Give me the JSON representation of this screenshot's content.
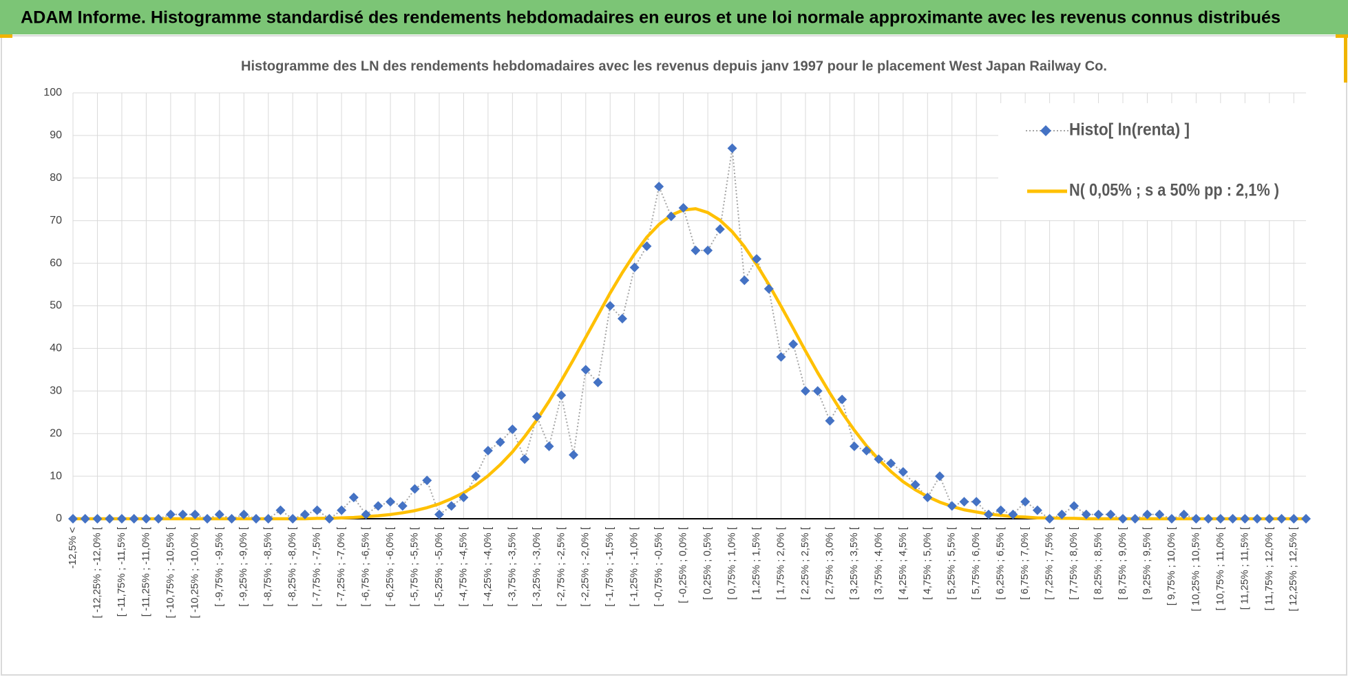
{
  "header": {
    "title": "ADAM Informe. Histogramme standardisé des rendements hebdomadaires en euros et une loi normale approximante avec les revenus connus distribués"
  },
  "chart_data": {
    "type": "line",
    "title": "Histogramme des LN des rendements hebdomadaires avec les revenus depuis janv 1997 pour le placement West Japan Railway Co.",
    "categories": [
      "-12,5% <",
      null,
      "[ -12,25% ; -12,0% [",
      null,
      "[ -11,75% ; -11,5% [",
      null,
      "[ -11,25% ; -11,0% [",
      null,
      "[ -10,75% ; -10,5% [",
      null,
      "[ -10,25% ; -10,0% [",
      null,
      "[ -9,75% ; -9,5% [",
      null,
      "[ -9,25% ; -9,0% [",
      null,
      "[ -8,75% ; -8,5% [",
      null,
      "[ -8,25% ; -8,0% [",
      null,
      "[ -7,75% ; -7,5% [",
      null,
      "[ -7,25% ; -7,0% [",
      null,
      "[ -6,75% ; -6,5% [",
      null,
      "[ -6,25% ; -6,0% [",
      null,
      "[ -5,75% ; -5,5% [",
      null,
      "[ -5,25% ; -5,0% [",
      null,
      "[ -4,75% ; -4,5% [",
      null,
      "[ -4,25% ; -4,0% [",
      null,
      "[ -3,75% ; -3,5% [",
      null,
      "[ -3,25% ; -3,0% [",
      null,
      "[ -2,75% ; -2,5% [",
      null,
      "[ -2,25% ; -2,0% [",
      null,
      "[ -1,75% ; -1,5% [",
      null,
      "[ -1,25% ; -1,0% [",
      null,
      "[ -0,75% ; -0,5% [",
      null,
      "[ -0,25% ; 0,0% [",
      null,
      "[ 0,25% ; 0,5% [",
      null,
      "[ 0,75% ; 1,0% [",
      null,
      "[ 1,25% ; 1,5% [",
      null,
      "[ 1,75% ; 2,0% [",
      null,
      "[ 2,25% ; 2,5% [",
      null,
      "[ 2,75% ; 3,0% [",
      null,
      "[ 3,25% ; 3,5% [",
      null,
      "[ 3,75% ; 4,0% [",
      null,
      "[ 4,25% ; 4,5% [",
      null,
      "[ 4,75% ; 5,0% [",
      null,
      "[ 5,25% ; 5,5% [",
      null,
      "[ 5,75% ; 6,0% [",
      null,
      "[ 6,25% ; 6,5% [",
      null,
      "[ 6,75% ; 7,0% [",
      null,
      "[ 7,25% ; 7,5% [",
      null,
      "[ 7,75% ; 8,0% [",
      null,
      "[ 8,25% ; 8,5% [",
      null,
      "[ 8,75% ; 9,0% [",
      null,
      "[ 9,25% ; 9,5% [",
      null,
      "[ 9,75% ; 10,0% [",
      null,
      "[ 10,25% ; 10,5% [",
      null,
      "[ 10,75% ; 11,0% [",
      null,
      "[ 11,25% ; 11,5% [",
      null,
      "[ 11,75% ; 12,0% [",
      null,
      "[ 12,25% ; 12,5% [",
      null
    ],
    "series": [
      {
        "name": "Histo[ ln(renta) ]",
        "color": "#4472c4",
        "line_color": "#a5a5a5",
        "marker": "diamond",
        "line_style": "dotted",
        "values": [
          0,
          0,
          0,
          0,
          0,
          0,
          0,
          0,
          1,
          1,
          1,
          0,
          1,
          0,
          1,
          0,
          0,
          2,
          0,
          1,
          2,
          0,
          2,
          5,
          1,
          3,
          4,
          3,
          7,
          9,
          1,
          3,
          5,
          10,
          16,
          18,
          21,
          14,
          24,
          17,
          29,
          15,
          35,
          32,
          50,
          47,
          59,
          64,
          78,
          71,
          73,
          63,
          63,
          68,
          87,
          56,
          61,
          54,
          38,
          41,
          30,
          30,
          23,
          28,
          17,
          16,
          14,
          13,
          11,
          8,
          5,
          10,
          3,
          4,
          4,
          1,
          2,
          1,
          4,
          2,
          0,
          1,
          3,
          1,
          1,
          1,
          0,
          0,
          1,
          1,
          0,
          1,
          0,
          0,
          0,
          0,
          0,
          0,
          0,
          0,
          0,
          0
        ]
      },
      {
        "name": "N( 0,05% ; s a 50% pp : 2,1% )",
        "color": "#ffc000",
        "marker": "none",
        "line_style": "solid",
        "values": [
          0,
          0,
          0,
          0,
          0,
          0,
          0,
          0,
          0,
          0,
          0,
          0,
          0,
          0,
          0,
          0,
          0,
          0,
          0,
          0,
          0.1,
          0.1,
          0.2,
          0.3,
          0.5,
          0.7,
          1.0,
          1.4,
          1.9,
          2.6,
          3.5,
          4.7,
          6.1,
          7.9,
          10.1,
          12.7,
          15.7,
          19.3,
          23.2,
          27.6,
          32.4,
          37.4,
          42.6,
          47.8,
          53.0,
          57.8,
          62.2,
          66.1,
          69.1,
          71.3,
          72.5,
          72.8,
          71.9,
          70.1,
          67.4,
          63.9,
          59.7,
          55.0,
          49.9,
          44.7,
          39.4,
          34.3,
          29.5,
          24.9,
          20.8,
          17.1,
          13.9,
          11.1,
          8.7,
          6.8,
          5.2,
          3.9,
          2.9,
          2.1,
          1.6,
          1.1,
          0.8,
          0.5,
          0.4,
          0.2,
          0.2,
          0.1,
          0.1,
          0,
          0,
          0,
          0,
          0,
          0,
          0,
          0,
          0,
          0,
          0,
          0,
          0,
          0,
          0,
          0,
          0,
          0,
          0
        ]
      }
    ],
    "ylim": [
      0,
      100
    ],
    "yticks": [
      0,
      10,
      20,
      30,
      40,
      50,
      60,
      70,
      80,
      90,
      100
    ],
    "grid": true,
    "legend": "top-right"
  }
}
